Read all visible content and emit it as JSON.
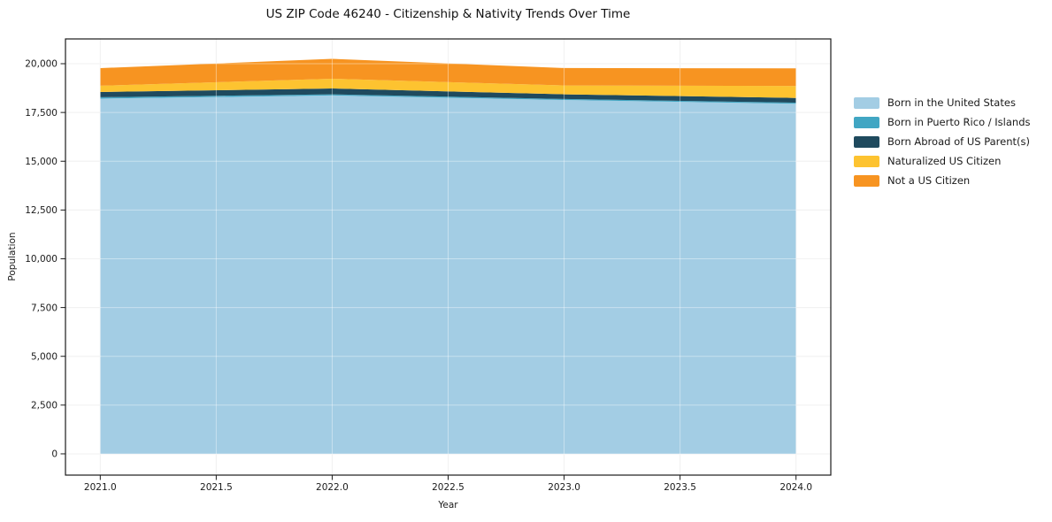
{
  "colors": {
    "background": "#ffffff",
    "text": "#1a1a1a",
    "title": "#111111",
    "grid": "#e9e9e9",
    "grid_overlay": "rgba(255,255,255,0.40)",
    "spine": "#1a1a1a"
  },
  "chart_data": {
    "type": "area",
    "stacked": true,
    "title": "US ZIP Code 46240 - Citizenship & Nativity Trends Over Time",
    "xlabel": "Year",
    "ylabel": "Population",
    "x": [
      2021,
      2022,
      2023,
      2024
    ],
    "series": [
      {
        "name": "Born in the United States",
        "color": "#a3cde4",
        "values": [
          18210,
          18370,
          18140,
          17945
        ]
      },
      {
        "name": "Born in Puerto Rico / Islands",
        "color": "#41a6c3",
        "values": [
          70,
          60,
          50,
          60
        ]
      },
      {
        "name": "Born Abroad of US Parent(s)",
        "color": "#1f4a5e",
        "values": [
          270,
          300,
          240,
          240
        ]
      },
      {
        "name": "Naturalized US Citizen",
        "color": "#fdc330",
        "values": [
          320,
          500,
          455,
          610
        ]
      },
      {
        "name": "Not a US Citizen",
        "color": "#f79421",
        "values": [
          905,
          1020,
          895,
          905
        ]
      }
    ],
    "stack_totals": [
      19775,
      20250,
      19780,
      19760
    ],
    "xticks": {
      "values": [
        2021,
        2021.5,
        2022,
        2022.5,
        2023,
        2023.5,
        2024
      ],
      "labels": [
        "2021.0",
        "2021.5",
        "2022.0",
        "2022.5",
        "2023.0",
        "2023.5",
        "2024.0"
      ]
    },
    "yticks": {
      "values": [
        0,
        2500,
        5000,
        7500,
        10000,
        12500,
        15000,
        17500,
        20000
      ],
      "labels": [
        "0",
        "2,500",
        "5,000",
        "7,500",
        "10,000",
        "12,500",
        "15,000",
        "17,500",
        "20,000"
      ]
    },
    "xlim": [
      2020.85,
      2024.15
    ],
    "ylim": [
      -1090,
      21270
    ],
    "grid": true,
    "legend_position": "right-outside"
  }
}
